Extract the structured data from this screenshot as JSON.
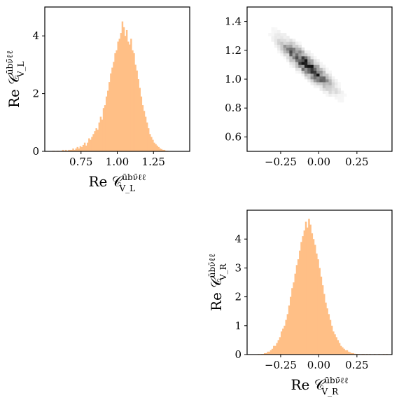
{
  "chart_data": [
    {
      "id": "hist_VL",
      "type": "bar",
      "subtype": "histogram",
      "xlabel": "Re C_{V_L}^{ūbν̄ℓℓ}",
      "ylabel": "Re C_{V_L}^{ūbν̄ℓℓ}",
      "xlabel_base": "Re 𝒞",
      "xlabel_sup": "ūbν̄ℓℓ",
      "xlabel_sub": "V_L",
      "ylabel_base": "Re 𝒞",
      "ylabel_sup": "ūbν̄ℓℓ",
      "ylabel_sub": "V_L",
      "xlim": [
        0.5,
        1.5
      ],
      "ylim": [
        0,
        5
      ],
      "xticks": [
        0.75,
        1.0,
        1.25
      ],
      "xtick_labels": [
        "0.75",
        "1.00",
        "1.25"
      ],
      "yticks": [
        0,
        2,
        4
      ],
      "ytick_labels": [
        "0",
        "2",
        "4"
      ],
      "color": "#ffbf86",
      "bin_width": 0.01,
      "bin_start": 0.55,
      "values": [
        0.02,
        0.02,
        0,
        0.02,
        0.02,
        0,
        0.02,
        0.05,
        0.02,
        0.05,
        0.02,
        0.05,
        0.05,
        0.05,
        0.1,
        0.05,
        0.1,
        0.15,
        0.1,
        0.18,
        0.15,
        0.22,
        0.3,
        0.2,
        0.3,
        0.45,
        0.4,
        0.5,
        0.6,
        0.7,
        0.8,
        0.75,
        1.0,
        1.2,
        1.1,
        1.5,
        1.6,
        1.9,
        2.1,
        2.4,
        2.7,
        2.9,
        3.1,
        3.4,
        3.5,
        3.8,
        3.9,
        4.1,
        4.5,
        4.3,
        4.0,
        4.2,
        3.8,
        3.7,
        3.9,
        3.5,
        3.4,
        3.0,
        2.8,
        2.5,
        2.2,
        1.9,
        1.6,
        1.4,
        1.2,
        1.0,
        0.8,
        0.6,
        0.5,
        0.4,
        0.3,
        0.25,
        0.2,
        0.15,
        0.1,
        0.08,
        0.05,
        0.05,
        0.02,
        0.02
      ]
    },
    {
      "id": "scatter_VR_VL",
      "type": "heatmap",
      "subtype": "2d-histogram",
      "xlim": [
        -0.47,
        0.48
      ],
      "ylim": [
        0.5,
        1.5
      ],
      "xticks": [
        -0.25,
        0.0,
        0.25
      ],
      "xtick_labels": [
        "−0.25",
        "0.00",
        "0.25"
      ],
      "yticks": [
        0.6,
        0.8,
        1.0,
        1.2,
        1.4
      ],
      "ytick_labels": [
        "0.6",
        "0.8",
        "1.0",
        "1.2",
        "1.4"
      ],
      "colormap": "gray_r",
      "mean": [
        -0.08,
        1.1
      ],
      "correlation": -0.9,
      "std": [
        0.095,
        0.095
      ],
      "nx": 48,
      "ny": 50
    },
    {
      "id": "hist_VR",
      "type": "bar",
      "subtype": "histogram",
      "xlabel": "Re C_{V_R}^{ūbν̄ℓℓ}",
      "ylabel": "Re C_{V_R}^{ūbν̄ℓℓ}",
      "xlabel_base": "Re 𝒞",
      "xlabel_sup": "ūbν̄ℓℓ",
      "xlabel_sub": "V_R",
      "ylabel_base": "Re 𝒞",
      "ylabel_sup": "ūbν̄ℓℓ",
      "ylabel_sub": "V_R",
      "xlim": [
        -0.47,
        0.48
      ],
      "ylim": [
        0,
        5
      ],
      "xticks": [
        -0.25,
        0.0,
        0.25
      ],
      "xtick_labels": [
        "−0.25",
        "0.00",
        "0.25"
      ],
      "yticks": [
        0,
        1,
        2,
        3,
        4
      ],
      "ytick_labels": [
        "0",
        "1",
        "2",
        "3",
        "4"
      ],
      "color": "#ffbf86",
      "bin_width": 0.01,
      "bin_start": -0.4,
      "values": [
        0.02,
        0,
        0.02,
        0.02,
        0.05,
        0.05,
        0.1,
        0.1,
        0.15,
        0.2,
        0.3,
        0.3,
        0.4,
        0.5,
        0.6,
        0.8,
        0.9,
        1.0,
        1.2,
        1.4,
        1.7,
        2.0,
        2.3,
        2.5,
        2.8,
        3.1,
        3.3,
        3.6,
        3.9,
        4.1,
        4.3,
        4.6,
        4.4,
        4.7,
        4.5,
        4.2,
        4.0,
        3.8,
        3.5,
        3.3,
        3.0,
        2.7,
        2.4,
        2.1,
        1.8,
        1.6,
        1.4,
        1.2,
        1.0,
        0.8,
        0.7,
        0.6,
        0.5,
        0.4,
        0.3,
        0.25,
        0.2,
        0.15,
        0.15,
        0.1,
        0.08,
        0.05,
        0.05,
        0.03,
        0.02,
        0.02,
        0.02,
        0,
        0.02,
        0.02,
        0,
        0.02,
        0,
        0.02,
        0,
        0,
        0.02,
        0,
        0,
        0.02,
        0,
        0,
        0.02,
        0,
        0.02
      ]
    }
  ]
}
